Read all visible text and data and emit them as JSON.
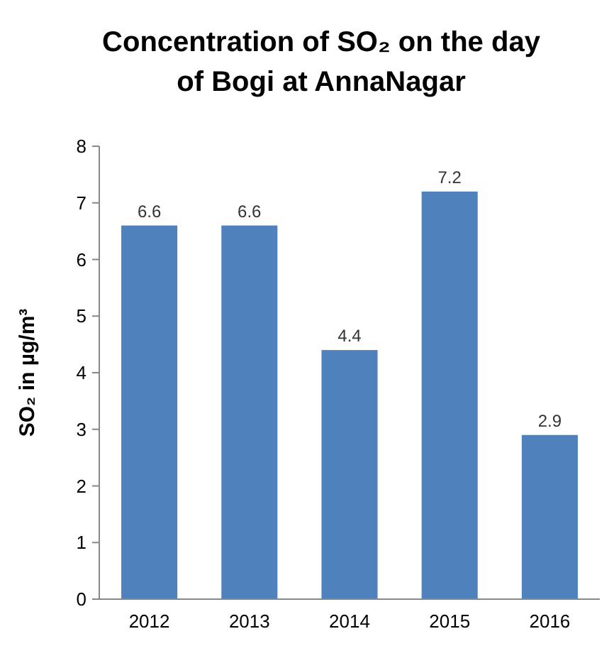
{
  "chart_data": {
    "type": "bar",
    "title": "Concentration of SO₂ on the day of Bogi at AnnaNagar",
    "ylabel": "SO₂ in µg/m³",
    "categories": [
      "2012",
      "2013",
      "2014",
      "2015",
      "2016"
    ],
    "values": [
      6.6,
      6.6,
      4.4,
      7.2,
      2.9
    ],
    "color": "#4f81bd",
    "ylim": [
      0,
      8
    ],
    "yticks": [
      0,
      1,
      2,
      3,
      4,
      5,
      6,
      7,
      8
    ],
    "data_labels": true
  }
}
